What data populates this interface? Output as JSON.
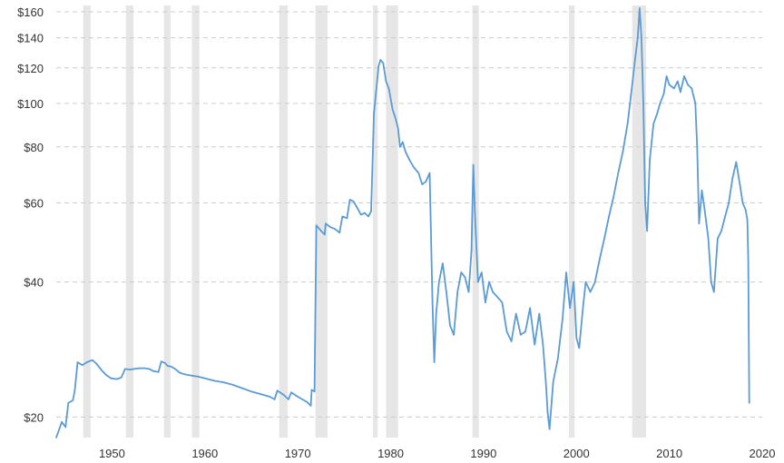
{
  "chart_data": {
    "type": "line",
    "title": "",
    "xlabel": "",
    "ylabel": "",
    "y_scale": "log",
    "xlim": [
      1944,
      2020
    ],
    "ylim": [
      18,
      170
    ],
    "grid": "horizontal dashed",
    "y_ticks": [
      {
        "value": 20,
        "label": "$20"
      },
      {
        "value": 40,
        "label": "$40"
      },
      {
        "value": 60,
        "label": "$60"
      },
      {
        "value": 80,
        "label": "$80"
      },
      {
        "value": 100,
        "label": "$100"
      },
      {
        "value": 120,
        "label": "$120"
      },
      {
        "value": 140,
        "label": "$140"
      },
      {
        "value": 160,
        "label": "$160"
      }
    ],
    "x_ticks": [
      {
        "value": 1950,
        "label": "1950"
      },
      {
        "value": 1960,
        "label": "1960"
      },
      {
        "value": 1970,
        "label": "1970"
      },
      {
        "value": 1980,
        "label": "1980"
      },
      {
        "value": 1990,
        "label": "1990"
      },
      {
        "value": 2000,
        "label": "2000"
      },
      {
        "value": 2010,
        "label": "2010"
      },
      {
        "value": 2020,
        "label": "2020"
      }
    ],
    "shaded_periods": [
      [
        1946.9,
        1947.7
      ],
      [
        1951.5,
        1952.3
      ],
      [
        1955.6,
        1956.3
      ],
      [
        1958.6,
        1959.4
      ],
      [
        1968.0,
        1968.9
      ],
      [
        1971.9,
        1973.2
      ],
      [
        1978.1,
        1978.6
      ],
      [
        1979.5,
        1980.8
      ],
      [
        1988.8,
        1989.5
      ],
      [
        1999.2,
        1999.8
      ],
      [
        2006.0,
        2007.5
      ]
    ],
    "series": [
      {
        "color": "#5b9bd5",
        "points": [
          [
            1944.0,
            18.0
          ],
          [
            1944.6,
            19.5
          ],
          [
            1945.0,
            19.0
          ],
          [
            1945.3,
            21.5
          ],
          [
            1945.8,
            21.8
          ],
          [
            1946.0,
            23.0
          ],
          [
            1946.3,
            26.5
          ],
          [
            1946.8,
            26.1
          ],
          [
            1947.3,
            26.5
          ],
          [
            1947.9,
            26.8
          ],
          [
            1948.4,
            26.2
          ],
          [
            1948.9,
            25.4
          ],
          [
            1949.4,
            24.8
          ],
          [
            1949.9,
            24.4
          ],
          [
            1950.5,
            24.3
          ],
          [
            1951.0,
            24.5
          ],
          [
            1951.4,
            25.6
          ],
          [
            1951.9,
            25.5
          ],
          [
            1952.4,
            25.6
          ],
          [
            1953.0,
            25.7
          ],
          [
            1953.5,
            25.7
          ],
          [
            1954.0,
            25.6
          ],
          [
            1954.5,
            25.3
          ],
          [
            1955.0,
            25.2
          ],
          [
            1955.3,
            26.6
          ],
          [
            1955.7,
            26.4
          ],
          [
            1956.0,
            26.0
          ],
          [
            1956.4,
            25.9
          ],
          [
            1956.8,
            25.6
          ],
          [
            1957.3,
            25.1
          ],
          [
            1957.8,
            24.9
          ],
          [
            1958.3,
            24.8
          ],
          [
            1958.8,
            24.7
          ],
          [
            1959.3,
            24.6
          ],
          [
            1960.0,
            24.4
          ],
          [
            1961.0,
            24.1
          ],
          [
            1962.0,
            23.9
          ],
          [
            1963.0,
            23.6
          ],
          [
            1964.0,
            23.2
          ],
          [
            1965.0,
            22.8
          ],
          [
            1966.0,
            22.5
          ],
          [
            1967.0,
            22.2
          ],
          [
            1967.5,
            21.9
          ],
          [
            1967.8,
            22.9
          ],
          [
            1968.5,
            22.4
          ],
          [
            1969.0,
            21.9
          ],
          [
            1969.3,
            22.7
          ],
          [
            1970.0,
            22.2
          ],
          [
            1971.0,
            21.6
          ],
          [
            1971.4,
            21.2
          ],
          [
            1971.5,
            23.0
          ],
          [
            1971.8,
            22.8
          ],
          [
            1972.0,
            53.5
          ],
          [
            1972.5,
            52.0
          ],
          [
            1972.9,
            51.0
          ],
          [
            1973.0,
            54.0
          ],
          [
            1973.5,
            53.0
          ],
          [
            1974.0,
            52.5
          ],
          [
            1974.5,
            51.5
          ],
          [
            1974.8,
            56.0
          ],
          [
            1975.3,
            55.5
          ],
          [
            1975.6,
            61.0
          ],
          [
            1976.0,
            60.5
          ],
          [
            1976.4,
            58.5
          ],
          [
            1976.8,
            56.5
          ],
          [
            1977.2,
            57.0
          ],
          [
            1977.6,
            56.0
          ],
          [
            1977.9,
            57.5
          ],
          [
            1978.2,
            95.0
          ],
          [
            1978.5,
            110.0
          ],
          [
            1978.7,
            121.0
          ],
          [
            1978.9,
            125.0
          ],
          [
            1979.2,
            123.0
          ],
          [
            1979.5,
            112.0
          ],
          [
            1979.8,
            108.0
          ],
          [
            1980.2,
            97.0
          ],
          [
            1980.5,
            93.0
          ],
          [
            1980.8,
            88.0
          ],
          [
            1981.0,
            80.0
          ],
          [
            1981.3,
            82.0
          ],
          [
            1981.6,
            78.0
          ],
          [
            1982.0,
            75.0
          ],
          [
            1982.5,
            72.0
          ],
          [
            1983.0,
            70.0
          ],
          [
            1983.4,
            66.0
          ],
          [
            1983.8,
            67.0
          ],
          [
            1984.2,
            70.0
          ],
          [
            1984.5,
            36.0
          ],
          [
            1984.7,
            26.5
          ],
          [
            1984.9,
            34.0
          ],
          [
            1985.2,
            40.0
          ],
          [
            1985.6,
            44.0
          ],
          [
            1986.0,
            38.0
          ],
          [
            1986.4,
            32.0
          ],
          [
            1986.8,
            30.5
          ],
          [
            1987.2,
            38.0
          ],
          [
            1987.6,
            42.0
          ],
          [
            1988.0,
            41.0
          ],
          [
            1988.4,
            38.0
          ],
          [
            1988.7,
            47.0
          ],
          [
            1988.9,
            73.0
          ],
          [
            1989.1,
            55.0
          ],
          [
            1989.4,
            40.0
          ],
          [
            1989.8,
            42.0
          ],
          [
            1990.2,
            36.0
          ],
          [
            1990.6,
            40.0
          ],
          [
            1991.0,
            38.0
          ],
          [
            1991.5,
            37.0
          ],
          [
            1992.0,
            36.0
          ],
          [
            1992.5,
            31.0
          ],
          [
            1993.0,
            29.5
          ],
          [
            1993.5,
            34.0
          ],
          [
            1994.0,
            30.5
          ],
          [
            1994.5,
            31.0
          ],
          [
            1995.0,
            35.0
          ],
          [
            1995.5,
            29.0
          ],
          [
            1996.0,
            34.0
          ],
          [
            1996.4,
            29.0
          ],
          [
            1996.7,
            24.0
          ],
          [
            1996.9,
            20.5
          ],
          [
            1997.1,
            18.8
          ],
          [
            1997.5,
            24.0
          ],
          [
            1998.0,
            27.0
          ],
          [
            1998.5,
            33.0
          ],
          [
            1998.9,
            42.0
          ],
          [
            1999.3,
            35.0
          ],
          [
            1999.7,
            40.0
          ],
          [
            2000.0,
            30.0
          ],
          [
            2000.3,
            28.5
          ],
          [
            2000.7,
            35.0
          ],
          [
            2001.0,
            40.0
          ],
          [
            2001.5,
            38.0
          ],
          [
            2002.0,
            40.0
          ],
          [
            2002.5,
            45.0
          ],
          [
            2003.0,
            50.0
          ],
          [
            2003.5,
            56.0
          ],
          [
            2004.0,
            62.0
          ],
          [
            2004.5,
            70.0
          ],
          [
            2005.0,
            78.0
          ],
          [
            2005.5,
            90.0
          ],
          [
            2006.0,
            110.0
          ],
          [
            2006.3,
            125.0
          ],
          [
            2006.6,
            140.0
          ],
          [
            2006.8,
            163.0
          ],
          [
            2007.0,
            140.0
          ],
          [
            2007.2,
            100.0
          ],
          [
            2007.4,
            60.0
          ],
          [
            2007.6,
            52.0
          ],
          [
            2007.9,
            75.0
          ],
          [
            2008.3,
            90.0
          ],
          [
            2008.7,
            95.0
          ],
          [
            2009.0,
            100.0
          ],
          [
            2009.4,
            105.0
          ],
          [
            2009.7,
            115.0
          ],
          [
            2010.0,
            110.0
          ],
          [
            2010.5,
            108.0
          ],
          [
            2010.9,
            112.0
          ],
          [
            2011.2,
            106.0
          ],
          [
            2011.6,
            115.0
          ],
          [
            2012.0,
            110.0
          ],
          [
            2012.4,
            108.0
          ],
          [
            2012.8,
            100.0
          ],
          [
            2013.0,
            80.0
          ],
          [
            2013.2,
            54.0
          ],
          [
            2013.5,
            64.0
          ],
          [
            2013.8,
            58.0
          ],
          [
            2014.2,
            50.0
          ],
          [
            2014.5,
            40.0
          ],
          [
            2014.8,
            38.0
          ],
          [
            2015.2,
            50.0
          ],
          [
            2015.6,
            52.0
          ],
          [
            2016.0,
            56.0
          ],
          [
            2016.4,
            60.0
          ],
          [
            2016.8,
            68.0
          ],
          [
            2017.2,
            74.0
          ],
          [
            2017.6,
            66.0
          ],
          [
            2017.9,
            60.0
          ],
          [
            2018.2,
            58.0
          ],
          [
            2018.4,
            55.0
          ],
          [
            2018.5,
            45.0
          ],
          [
            2018.6,
            21.5
          ]
        ]
      }
    ]
  }
}
